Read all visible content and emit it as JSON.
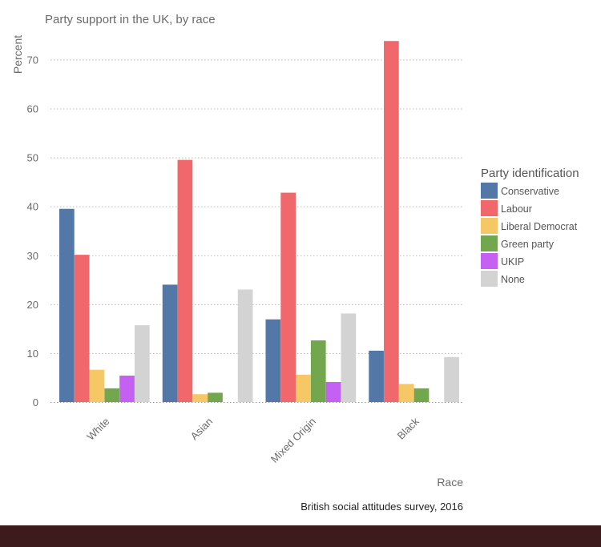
{
  "chart_data": {
    "type": "bar",
    "title": "Party support in the UK, by race",
    "xlabel": "Race",
    "ylabel": "Percent",
    "ylim": [
      0,
      74
    ],
    "yticks": [
      0,
      10,
      20,
      30,
      40,
      50,
      60,
      70
    ],
    "categories": [
      "White",
      "Asian",
      "Mixed Origin",
      "Black"
    ],
    "series": [
      {
        "name": "Conservative",
        "color": "#5378a8",
        "values": [
          39.5,
          24,
          16.9,
          10.5
        ]
      },
      {
        "name": "Labour",
        "color": "#f0686c",
        "values": [
          30.1,
          49.5,
          42.8,
          73.8
        ]
      },
      {
        "name": "Liberal Democrat",
        "color": "#f6c765",
        "values": [
          6.6,
          1.6,
          5.6,
          3.7
        ]
      },
      {
        "name": "Green party",
        "color": "#72a74d",
        "values": [
          2.8,
          1.9,
          12.6,
          2.8
        ]
      },
      {
        "name": "UKIP",
        "color": "#c460f2",
        "values": [
          5.4,
          null,
          4.1,
          null
        ]
      },
      {
        "name": "None",
        "color": "#d3d3d3",
        "values": [
          15.7,
          23,
          18.1,
          9.2
        ]
      }
    ],
    "legend": {
      "title": "Party identification",
      "position": "right"
    },
    "grid": true,
    "source": "British social attitudes survey, 2016"
  },
  "colors": {
    "text": "#6b6b6b",
    "dark_text": "#222222",
    "bottom_band": "#3d1a1c"
  }
}
